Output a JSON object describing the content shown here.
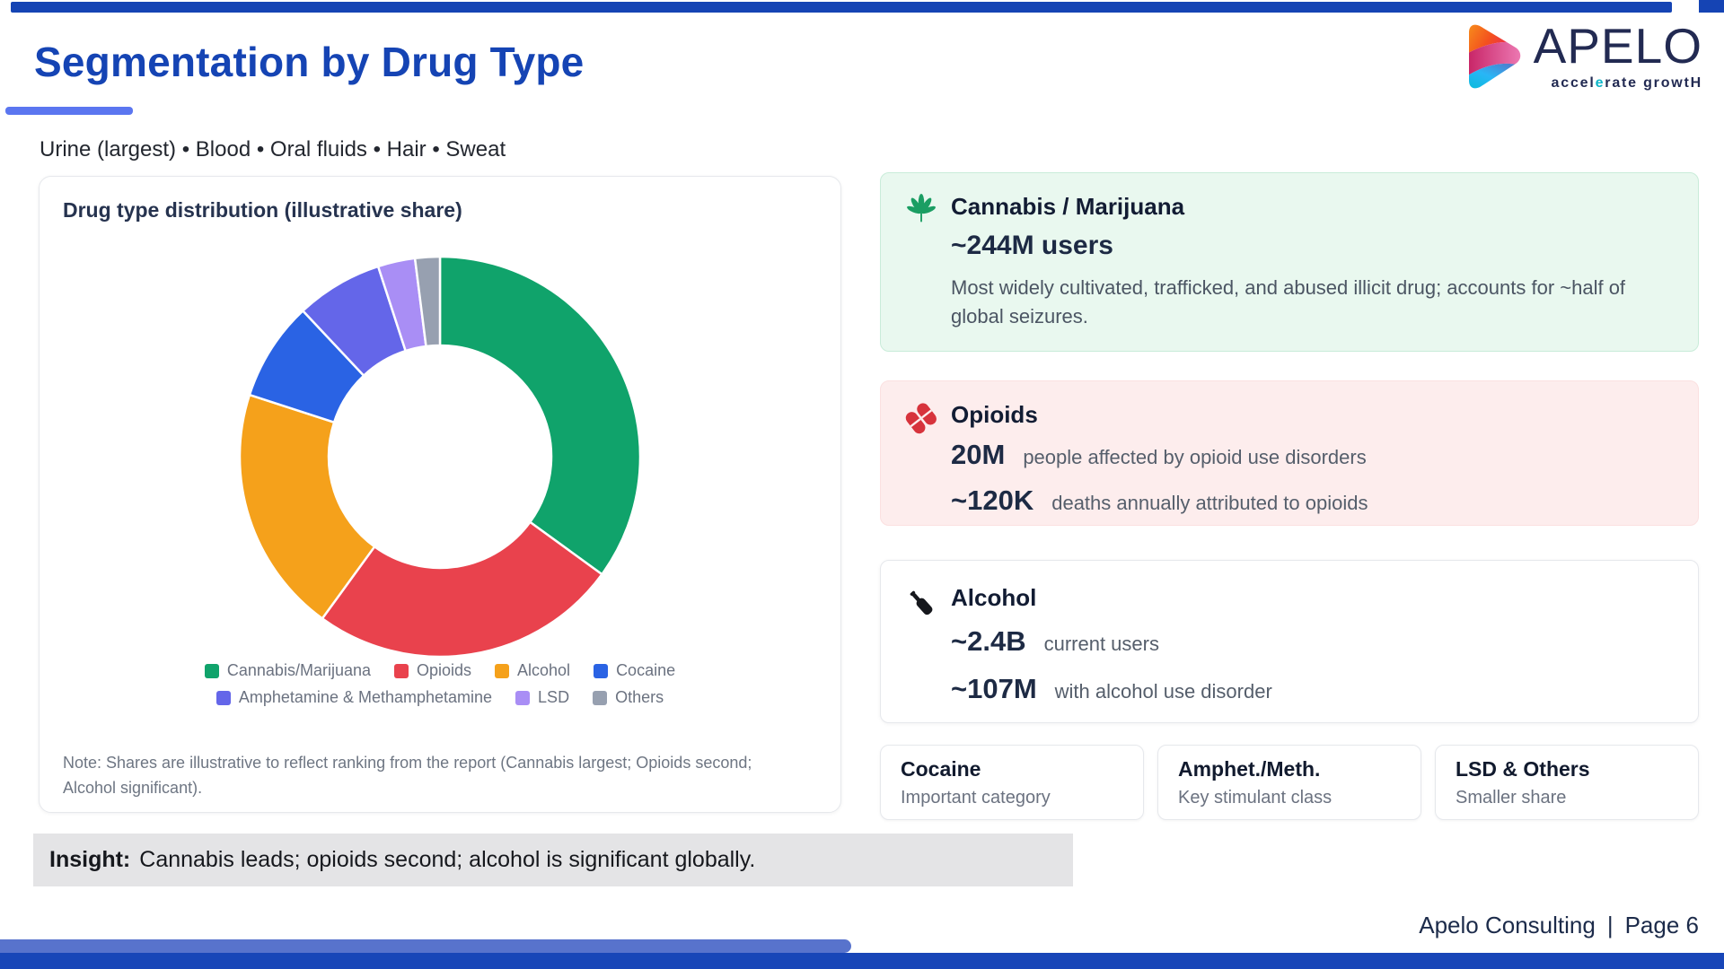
{
  "page": {
    "title": "Segmentation by Drug Type",
    "subtitle": "Urine (largest) • Blood • Oral fluids • Hair • Sweat",
    "accent_color": "#5b76f0",
    "bar_color": "#1544b4"
  },
  "logo": {
    "name": "APELO",
    "tagline": {
      "pre": "accel",
      "accent": "e",
      "post": "rate growtH"
    },
    "text_color": "#222a52",
    "tagline_accent_color": "#0fb6c9"
  },
  "chart_data": {
    "type": "pie",
    "variant": "donut",
    "title": "Drug type distribution (illustrative share)",
    "categories": [
      "Cannabis/Marijuana",
      "Opioids",
      "Alcohol",
      "Cocaine",
      "Amphetamine & Methamphetamine",
      "LSD",
      "Others"
    ],
    "values": [
      35,
      25,
      20,
      8,
      7,
      3,
      2
    ],
    "unit": "illustrative share (%)",
    "colors": [
      "#10a36b",
      "#e9424d",
      "#f5a11b",
      "#2a63e4",
      "#6466e9",
      "#a98ef5",
      "#97a0b0"
    ],
    "legend_position": "bottom",
    "legend_rows": [
      4,
      3
    ],
    "note": "Note: Shares are illustrative to reflect ranking from the report (Cannabis largest; Opioids second; Alcohol significant)."
  },
  "cards": {
    "cannabis": {
      "title": "Cannabis / Marijuana",
      "stat": "~244M users",
      "description": "Most widely cultivated, trafficked, and abused illicit drug; accounts for ~half of global seizures.",
      "icon": "cannabis-leaf",
      "bg": "#e9f8ef",
      "border": "#c9ecd9"
    },
    "opioids": {
      "title": "Opioids",
      "icon": "pills",
      "bg": "#fdeded",
      "rows": [
        {
          "value": "20M",
          "label": "people affected by opioid use disorders"
        },
        {
          "value": "~120K",
          "label": "deaths annually attributed to opioids"
        }
      ]
    },
    "alcohol": {
      "title": "Alcohol",
      "icon": "bottle",
      "bg": "#ffffff",
      "rows": [
        {
          "value": "~2.4B",
          "label": "current users"
        },
        {
          "value": "~107M",
          "label": "with alcohol use disorder"
        }
      ]
    },
    "small": [
      {
        "title": "Cocaine",
        "subtitle": "Important category"
      },
      {
        "title": "Amphet./Meth.",
        "subtitle": "Key stimulant class"
      },
      {
        "title": "LSD & Others",
        "subtitle": "Smaller share"
      }
    ]
  },
  "insight": {
    "prefix": "Insight:",
    "text": "Cannabis leads; opioids second; alcohol is significant globally."
  },
  "footer": {
    "brand": "Apelo Consulting",
    "separator": "|",
    "page": "Page 6"
  }
}
